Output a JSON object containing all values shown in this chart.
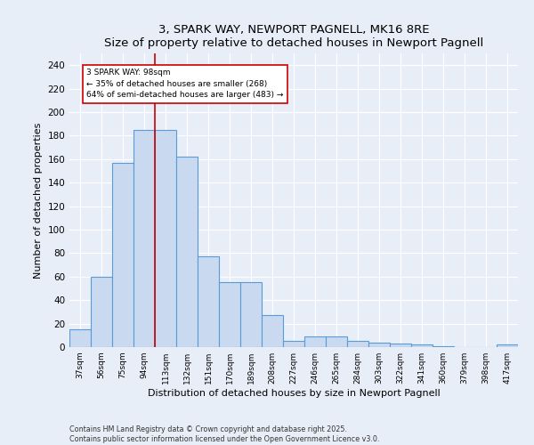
{
  "title": "3, SPARK WAY, NEWPORT PAGNELL, MK16 8RE",
  "subtitle": "Size of property relative to detached houses in Newport Pagnell",
  "xlabel": "Distribution of detached houses by size in Newport Pagnell",
  "ylabel": "Number of detached properties",
  "categories": [
    "37sqm",
    "56sqm",
    "75sqm",
    "94sqm",
    "113sqm",
    "132sqm",
    "151sqm",
    "170sqm",
    "189sqm",
    "208sqm",
    "227sqm",
    "246sqm",
    "265sqm",
    "284sqm",
    "303sqm",
    "322sqm",
    "341sqm",
    "360sqm",
    "379sqm",
    "398sqm",
    "417sqm"
  ],
  "values": [
    15,
    60,
    157,
    185,
    185,
    162,
    77,
    55,
    55,
    27,
    5,
    9,
    9,
    5,
    4,
    3,
    2,
    1,
    0,
    0,
    2
  ],
  "bar_color": "#c9d9f0",
  "bar_edge_color": "#5b9bd5",
  "vline_x": 3.5,
  "vline_color": "#cc0000",
  "annotation_text": "3 SPARK WAY: 98sqm\n← 35% of detached houses are smaller (268)\n64% of semi-detached houses are larger (483) →",
  "ylim": [
    0,
    250
  ],
  "yticks": [
    0,
    20,
    40,
    60,
    80,
    100,
    120,
    140,
    160,
    180,
    200,
    220,
    240
  ],
  "background_color": "#e8eef8",
  "footer_line1": "Contains HM Land Registry data © Crown copyright and database right 2025.",
  "footer_line2": "Contains public sector information licensed under the Open Government Licence v3.0."
}
